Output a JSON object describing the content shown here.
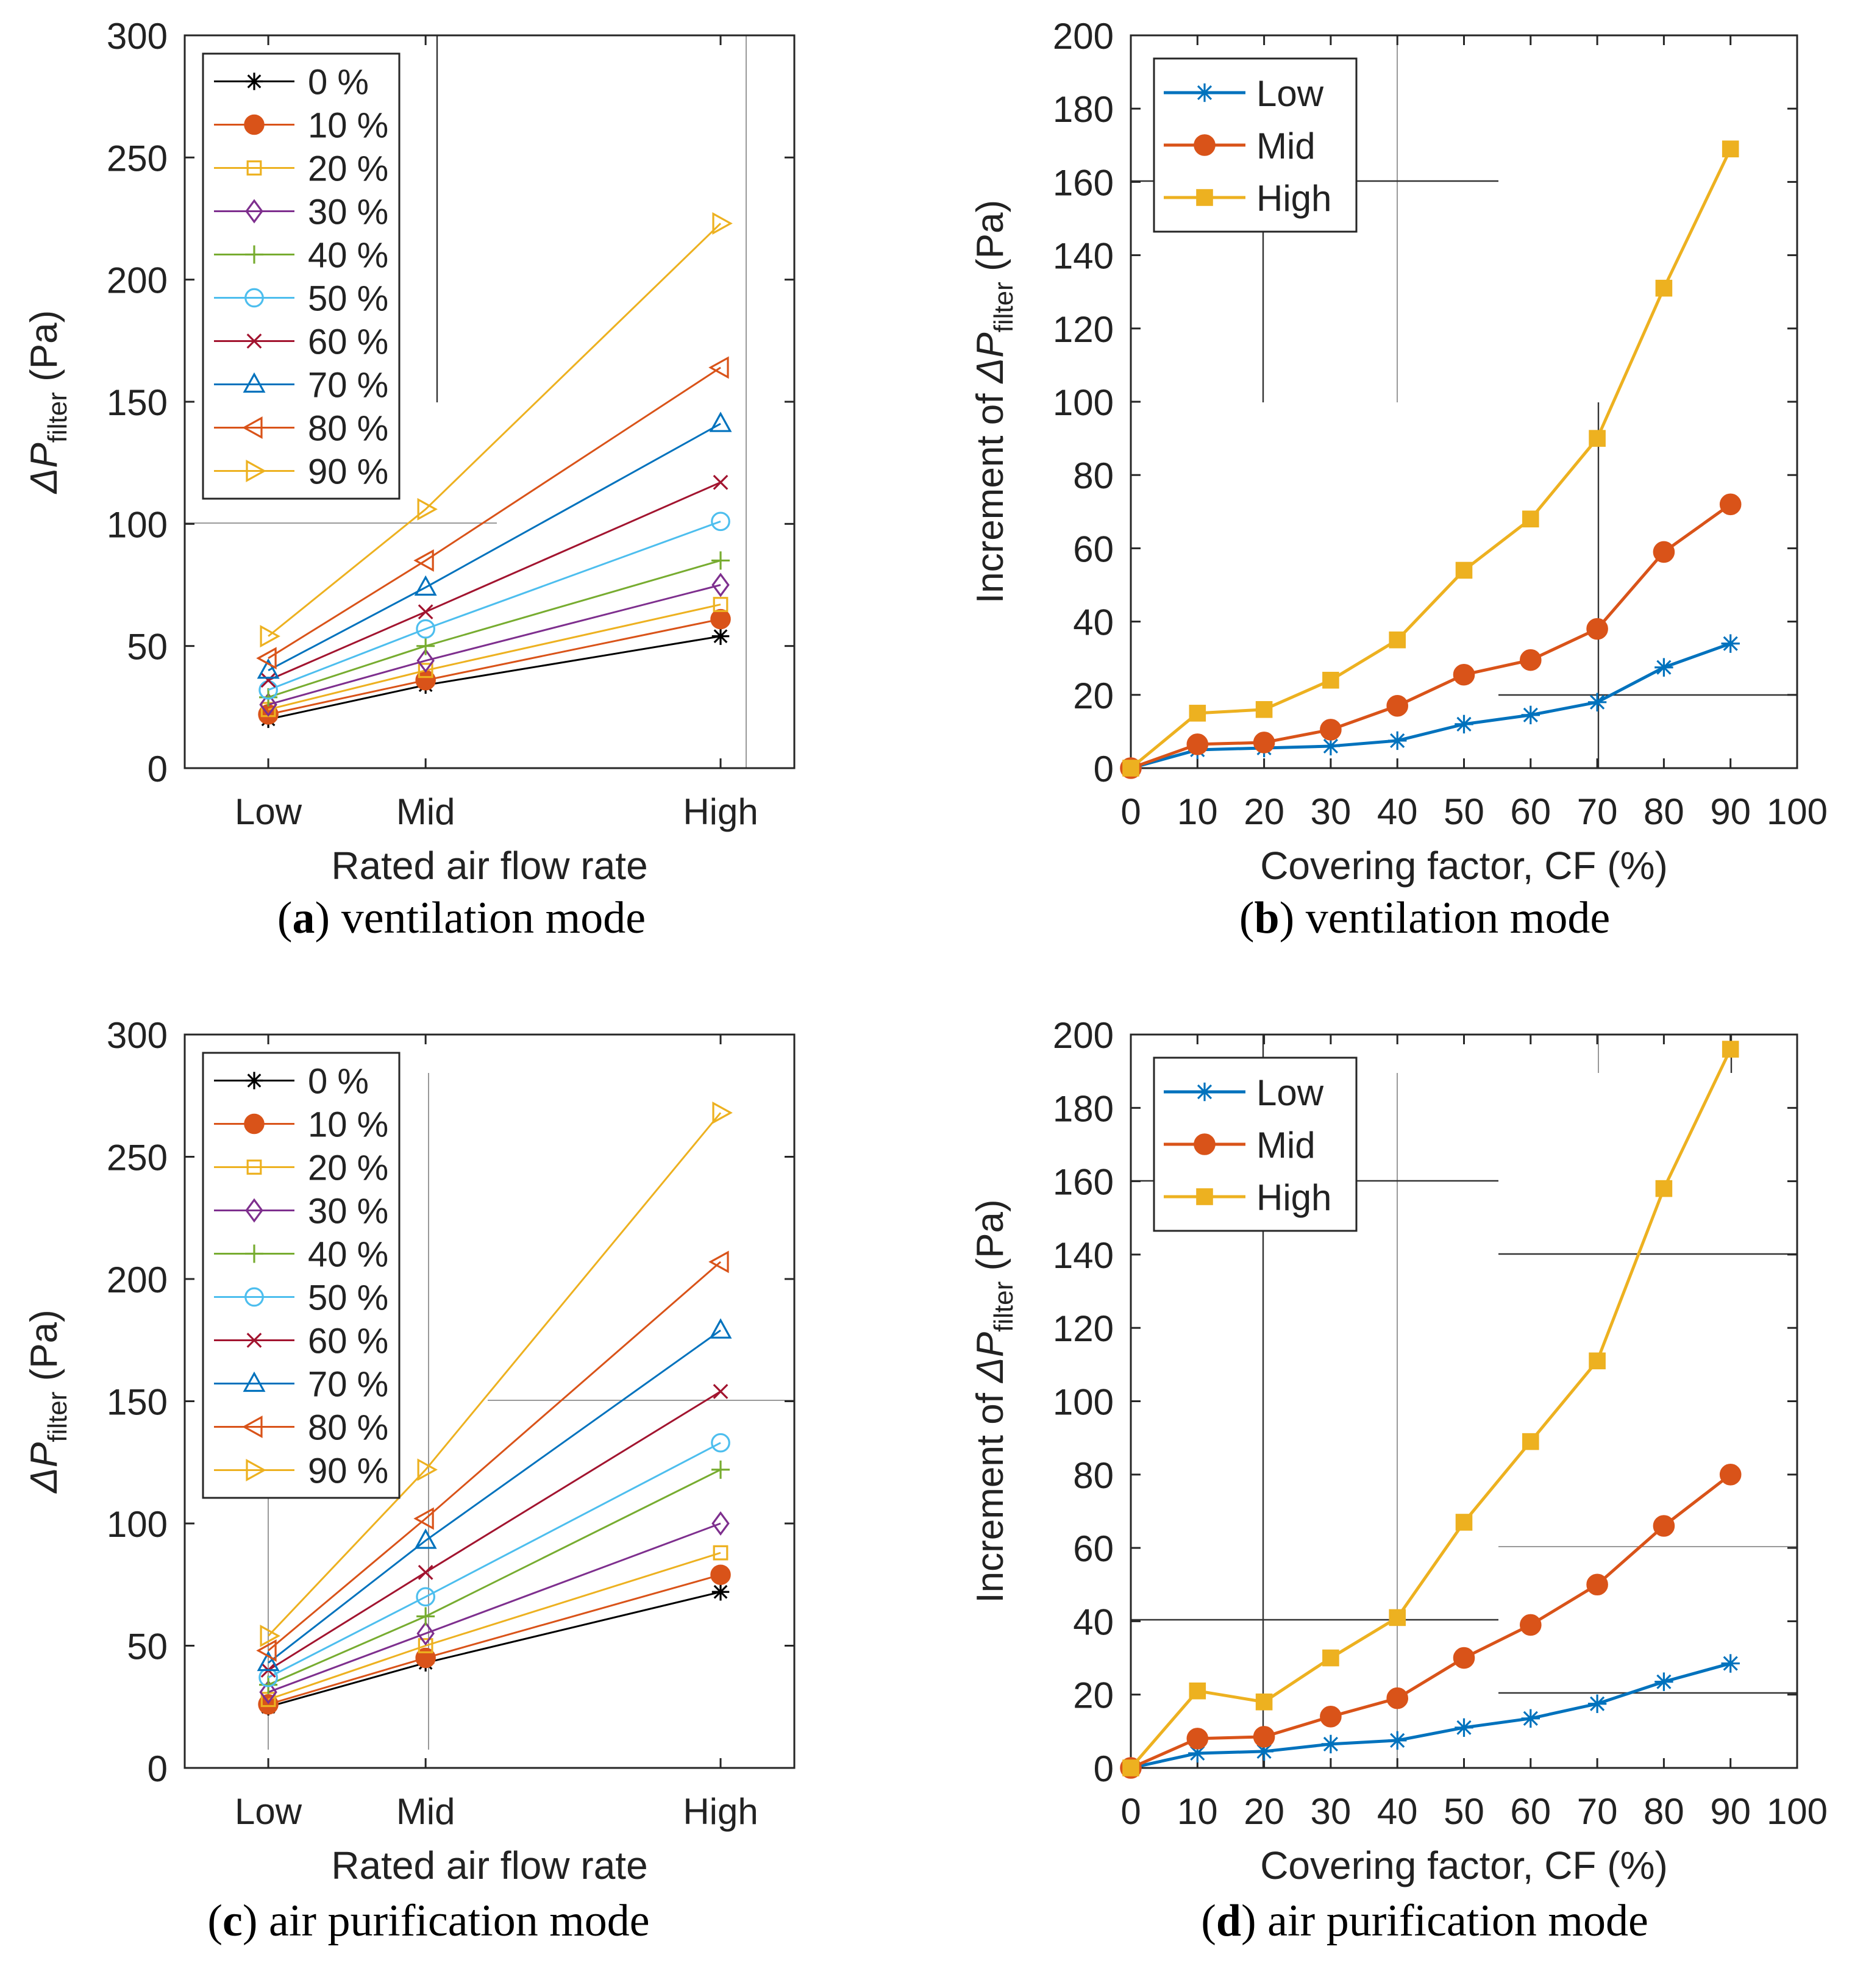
{
  "colors": {
    "0 %": "#000000",
    "10 %": "#d95319",
    "20 %": "#edb120",
    "30 %": "#7e2f8e",
    "40 %": "#77ac30",
    "50 %": "#4dbeee",
    "60 %": "#a2142f",
    "70 %": "#0072bd",
    "80 %": "#d95319",
    "90 %": "#edb120",
    "Low": "#0072bd",
    "Mid": "#d95319",
    "High": "#edb120"
  },
  "chart_data": [
    {
      "id": "a",
      "type": "line",
      "caption_letter": "a",
      "caption_text": ") ventilation mode",
      "xlabel": "Rated air flow rate",
      "ylabel_prefix": "ΔP",
      "ylabel_sub": "filter",
      "ylabel_unit": "(Pa)",
      "categories": [
        "Low",
        "Mid",
        "High"
      ],
      "x_positions": [
        1,
        2.6,
        5.6
      ],
      "xlim": [
        0.15,
        6.35
      ],
      "ylim": [
        0,
        300
      ],
      "yticks": [
        0,
        50,
        100,
        150,
        200,
        250,
        300
      ],
      "legend_position": "top-left",
      "series": [
        {
          "name": "0 %",
          "marker": "asterisk",
          "values": [
            20,
            34,
            54
          ]
        },
        {
          "name": "10 %",
          "marker": "filled-circle",
          "values": [
            22,
            36,
            61
          ]
        },
        {
          "name": "20 %",
          "marker": "square",
          "values": [
            24,
            40,
            67
          ]
        },
        {
          "name": "30 %",
          "marker": "diamond",
          "values": [
            26,
            44,
            75
          ]
        },
        {
          "name": "40 %",
          "marker": "plus",
          "values": [
            29,
            50,
            85
          ]
        },
        {
          "name": "50 %",
          "marker": "circle",
          "values": [
            32,
            57,
            101
          ]
        },
        {
          "name": "60 %",
          "marker": "x",
          "values": [
            36,
            64,
            117
          ]
        },
        {
          "name": "70 %",
          "marker": "triangle-up",
          "values": [
            40,
            74,
            141
          ]
        },
        {
          "name": "80 %",
          "marker": "triangle-left",
          "values": [
            45,
            85,
            164
          ]
        },
        {
          "name": "90 %",
          "marker": "triangle-right",
          "values": [
            54,
            106,
            223
          ]
        }
      ]
    },
    {
      "id": "b",
      "type": "line",
      "caption_letter": "b",
      "caption_text": ") ventilation mode",
      "xlabel": "Covering factor, CF (%)",
      "ylabel_prefix": "Increment of  ΔP",
      "ylabel_sub": "filter",
      "ylabel_unit": "(Pa)",
      "x": [
        0,
        10,
        20,
        30,
        40,
        50,
        60,
        70,
        80,
        90
      ],
      "xlim": [
        0,
        100
      ],
      "xticks": [
        0,
        10,
        20,
        30,
        40,
        50,
        60,
        70,
        80,
        90,
        100
      ],
      "ylim": [
        0,
        200
      ],
      "yticks": [
        0,
        20,
        40,
        60,
        80,
        100,
        120,
        140,
        160,
        180,
        200
      ],
      "legend_position": "top-left",
      "series": [
        {
          "name": "Low",
          "marker": "asterisk",
          "values": [
            0,
            5,
            5.5,
            6,
            7.5,
            12,
            14.5,
            18,
            27.5,
            34
          ]
        },
        {
          "name": "Mid",
          "marker": "filled-circle",
          "values": [
            0,
            6.5,
            7,
            10.5,
            17,
            25.5,
            29.5,
            38,
            59,
            72
          ]
        },
        {
          "name": "High",
          "marker": "filled-square",
          "values": [
            0,
            15,
            16,
            24,
            35,
            54,
            68,
            90,
            131,
            169
          ]
        }
      ]
    },
    {
      "id": "c",
      "type": "line",
      "caption_letter": "c",
      "caption_text": ") air purification mode",
      "xlabel": "Rated air flow rate",
      "ylabel_prefix": "ΔP",
      "ylabel_sub": "filter",
      "ylabel_unit": "(Pa)",
      "categories": [
        "Low",
        "Mid",
        "High"
      ],
      "x_positions": [
        1,
        2.6,
        5.6
      ],
      "xlim": [
        0.15,
        6.35
      ],
      "ylim": [
        0,
        300
      ],
      "yticks": [
        0,
        50,
        100,
        150,
        200,
        250,
        300
      ],
      "legend_position": "top-left",
      "series": [
        {
          "name": "0 %",
          "marker": "asterisk",
          "values": [
            25,
            43,
            72
          ]
        },
        {
          "name": "10 %",
          "marker": "filled-circle",
          "values": [
            26,
            45,
            79
          ]
        },
        {
          "name": "20 %",
          "marker": "square",
          "values": [
            28,
            50,
            88
          ]
        },
        {
          "name": "30 %",
          "marker": "diamond",
          "values": [
            31,
            55,
            100
          ]
        },
        {
          "name": "40 %",
          "marker": "plus",
          "values": [
            34,
            62,
            122
          ]
        },
        {
          "name": "50 %",
          "marker": "circle",
          "values": [
            37,
            70,
            133
          ]
        },
        {
          "name": "60 %",
          "marker": "x",
          "values": [
            40,
            80,
            154
          ]
        },
        {
          "name": "70 %",
          "marker": "triangle-up",
          "values": [
            43,
            93,
            179
          ]
        },
        {
          "name": "80 %",
          "marker": "triangle-left",
          "values": [
            48,
            102,
            207
          ]
        },
        {
          "name": "90 %",
          "marker": "triangle-right",
          "values": [
            54,
            122,
            268
          ]
        }
      ]
    },
    {
      "id": "d",
      "type": "line",
      "caption_letter": "d",
      "caption_text": ") air purification mode",
      "xlabel": "Covering factor, CF (%)",
      "ylabel_prefix": "Increment of  ΔP",
      "ylabel_sub": "filter",
      "ylabel_unit": "(Pa)",
      "x": [
        0,
        10,
        20,
        30,
        40,
        50,
        60,
        70,
        80,
        90
      ],
      "xlim": [
        0,
        100
      ],
      "xticks": [
        0,
        10,
        20,
        30,
        40,
        50,
        60,
        70,
        80,
        90,
        100
      ],
      "ylim": [
        0,
        200
      ],
      "yticks": [
        0,
        20,
        40,
        60,
        80,
        100,
        120,
        140,
        160,
        180,
        200
      ],
      "legend_position": "top-left",
      "series": [
        {
          "name": "Low",
          "marker": "asterisk",
          "values": [
            0,
            4,
            4.5,
            6.5,
            7.5,
            11,
            13.5,
            17.5,
            23.5,
            28.5
          ]
        },
        {
          "name": "Mid",
          "marker": "filled-circle",
          "values": [
            0,
            8,
            8.5,
            14,
            19,
            30,
            39,
            50,
            66,
            80
          ]
        },
        {
          "name": "High",
          "marker": "filled-square",
          "values": [
            0,
            21,
            18,
            30,
            41,
            67,
            89,
            111,
            158,
            196
          ]
        }
      ]
    }
  ]
}
